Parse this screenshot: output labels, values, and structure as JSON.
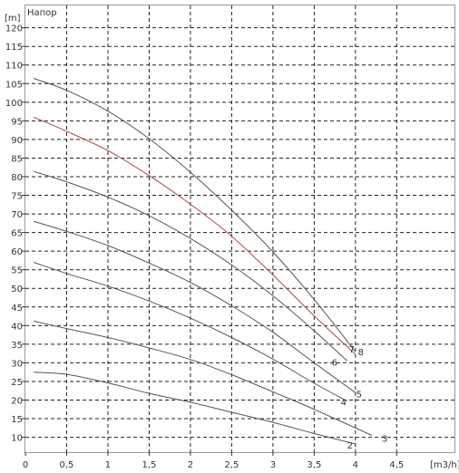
{
  "chart_data": {
    "type": "line",
    "title": "Напор",
    "ylabel": "[m]",
    "xlabel": "[m3/h]",
    "xlim": [
      0,
      5.2
    ],
    "ylim": [
      6,
      126
    ],
    "grid": true,
    "x_ticks": [
      {
        "value": 0,
        "label": "0"
      },
      {
        "value": 0.5,
        "label": "0,5"
      },
      {
        "value": 1,
        "label": "1"
      },
      {
        "value": 1.5,
        "label": "1,5"
      },
      {
        "value": 2,
        "label": "2"
      },
      {
        "value": 2.5,
        "label": "2,5"
      },
      {
        "value": 3,
        "label": "3"
      },
      {
        "value": 3.5,
        "label": "3,5"
      },
      {
        "value": 4,
        "label": "4"
      },
      {
        "value": 4.5,
        "label": "4,5"
      }
    ],
    "y_ticks": [
      {
        "value": 10,
        "label": "10"
      },
      {
        "value": 15,
        "label": "15"
      },
      {
        "value": 20,
        "label": "20"
      },
      {
        "value": 25,
        "label": "25"
      },
      {
        "value": 30,
        "label": "30"
      },
      {
        "value": 35,
        "label": "35"
      },
      {
        "value": 40,
        "label": "40"
      },
      {
        "value": 45,
        "label": "45"
      },
      {
        "value": 50,
        "label": "50"
      },
      {
        "value": 55,
        "label": "55"
      },
      {
        "value": 60,
        "label": "60"
      },
      {
        "value": 65,
        "label": "65"
      },
      {
        "value": 70,
        "label": "70"
      },
      {
        "value": 75,
        "label": "75"
      },
      {
        "value": 80,
        "label": "80"
      },
      {
        "value": 85,
        "label": "85"
      },
      {
        "value": 90,
        "label": "90"
      },
      {
        "value": 95,
        "label": "95"
      },
      {
        "value": 100,
        "label": "100"
      },
      {
        "value": 105,
        "label": "105"
      },
      {
        "value": 110,
        "label": "110"
      },
      {
        "value": 115,
        "label": "115"
      },
      {
        "value": 120,
        "label": "120"
      }
    ],
    "series": [
      {
        "label": "2",
        "color": "#555555",
        "x": [
          0.1,
          0.5,
          1,
          1.5,
          2,
          2.5,
          3,
          3.5,
          4.0
        ],
        "y": [
          27.5,
          26.9,
          24.6,
          21.8,
          19.4,
          16.7,
          14.0,
          11.0,
          8.2
        ]
      },
      {
        "label": "3",
        "color": "#555555",
        "x": [
          0.1,
          0.5,
          1,
          1.5,
          2,
          2.5,
          3,
          3.5,
          4.2
        ],
        "y": [
          41.2,
          39.2,
          36.8,
          34.0,
          30.9,
          26.8,
          22.2,
          17.5,
          10.5
        ]
      },
      {
        "label": "4",
        "color": "#555555",
        "x": [
          0.1,
          0.5,
          1,
          1.5,
          2,
          2.5,
          3,
          3.5,
          3.9
        ],
        "y": [
          57.0,
          54.0,
          50.6,
          46.6,
          42.0,
          36.8,
          31.0,
          24.5,
          19.7
        ]
      },
      {
        "label": "5",
        "color": "#555555",
        "x": [
          0.1,
          0.5,
          1,
          1.5,
          2,
          2.5,
          3,
          3.5,
          4.0
        ],
        "y": [
          68.0,
          65.3,
          61.5,
          56.8,
          51.6,
          45.3,
          38.2,
          30.0,
          22.0
        ]
      },
      {
        "label": "6",
        "color": "#555555",
        "x": [
          0.1,
          0.5,
          1,
          1.5,
          2,
          2.5,
          3,
          3.5,
          3.9
        ],
        "y": [
          81.4,
          78.6,
          74.5,
          69.5,
          63.4,
          56.3,
          48.0,
          38.6,
          30.5
        ]
      },
      {
        "label": "7",
        "color": "#b04848",
        "x": [
          0.1,
          0.5,
          1,
          1.5,
          2,
          2.5,
          3,
          3.5,
          4.0
        ],
        "y": [
          96.0,
          92.2,
          87.0,
          80.3,
          72.6,
          64.0,
          53.6,
          42.6,
          32.3
        ]
      },
      {
        "label": "8",
        "color": "#555555",
        "x": [
          0.1,
          0.5,
          1,
          1.5,
          2,
          2.5,
          3,
          3.5,
          4.0
        ],
        "y": [
          106.4,
          103.2,
          97.6,
          90.2,
          81.2,
          71.0,
          59.8,
          47.0,
          33.0
        ]
      }
    ]
  }
}
